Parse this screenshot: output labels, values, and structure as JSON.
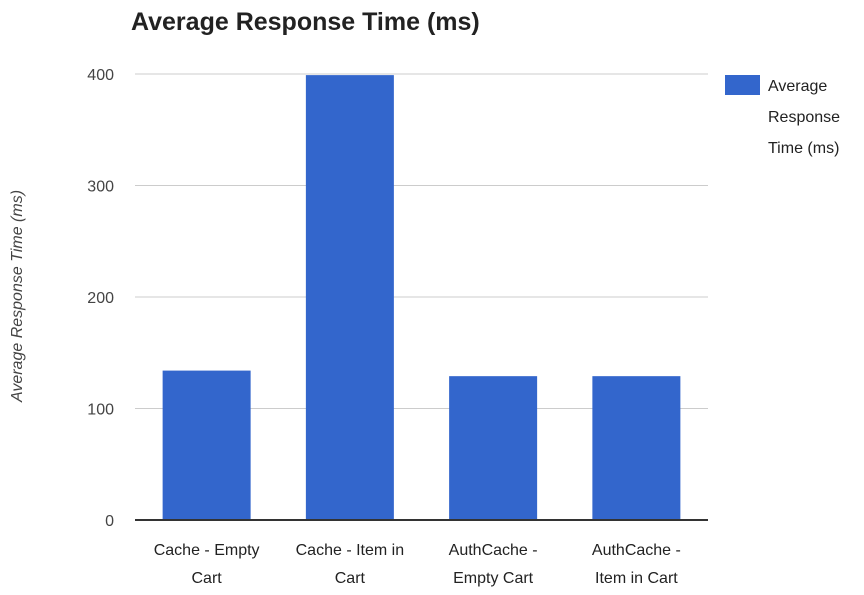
{
  "chart_data": {
    "type": "bar",
    "title": "Average Response Time (ms)",
    "xlabel": "",
    "ylabel": "Average Response Time (ms)",
    "categories": [
      [
        "Cache - Empty",
        "Cart"
      ],
      [
        "Cache - Item in",
        "Cart"
      ],
      [
        "AuthCache -",
        "Empty Cart"
      ],
      [
        "AuthCache -",
        "Item in Cart"
      ]
    ],
    "series": [
      {
        "name": [
          "Average",
          "Response",
          "Time (ms)"
        ],
        "values": [
          134,
          399,
          129,
          129
        ]
      }
    ],
    "ylim": [
      0,
      400
    ],
    "yticks": [
      "0",
      "100",
      "200",
      "300",
      "400"
    ],
    "grid": true,
    "legend_position": "right",
    "colors": {
      "bar": "#3366cc",
      "grid": "#cccccc",
      "axis": "#333333"
    }
  }
}
